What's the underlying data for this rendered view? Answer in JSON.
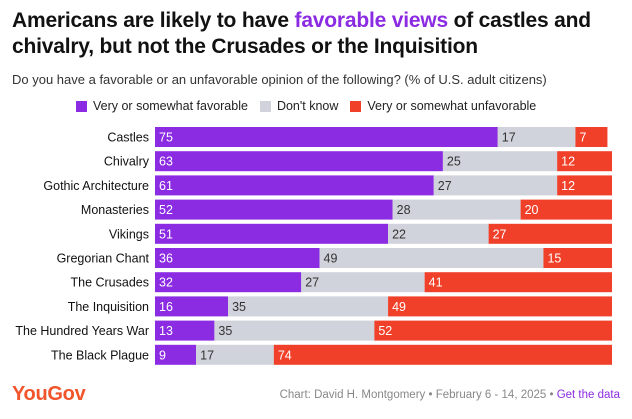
{
  "title": {
    "part1": "Americans are likely to have ",
    "highlight": "favorable views",
    "part2": " of castles and chivalry, but not the Crusades or the Inquisition"
  },
  "subtitle": "Do you have a favorable or an unfavorable opinion of the following? (% of U.S. adult citizens)",
  "footer": {
    "logo": "YouGov",
    "credit": "Chart: David H. Montgomery • February 6 - 14, 2025 • ",
    "link": "Get the data"
  },
  "colors": {
    "favorable": "#8b2be2",
    "dont_know": "#d0d3db",
    "unfavorable": "#f0402a",
    "highlight": "#8b2be2"
  },
  "chart_data": {
    "type": "bar",
    "orientation": "horizontal",
    "stacked": true,
    "categories": [
      "Castles",
      "Chivalry",
      "Gothic Architecture",
      "Monasteries",
      "Vikings",
      "Gregorian Chant",
      "The Crusades",
      "The Inquisition",
      "The Hundred Years War",
      "The Black Plague"
    ],
    "series": [
      {
        "name": "Very or somewhat favorable",
        "values": [
          75,
          63,
          61,
          52,
          51,
          36,
          32,
          16,
          13,
          9
        ]
      },
      {
        "name": "Don't know",
        "values": [
          17,
          25,
          27,
          28,
          22,
          49,
          27,
          35,
          35,
          17
        ]
      },
      {
        "name": "Very or somewhat unfavorable",
        "values": [
          7,
          12,
          12,
          20,
          27,
          15,
          41,
          49,
          52,
          74
        ]
      }
    ],
    "xlim": [
      0,
      100
    ],
    "legend_position": "top"
  }
}
